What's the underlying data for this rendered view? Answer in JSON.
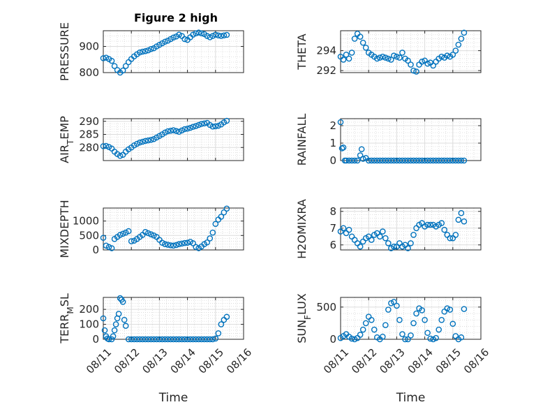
{
  "figure": {
    "title": "Figure 2 high"
  },
  "colors": {
    "series": "#0072bd",
    "axes": "#262626",
    "grid": "#dcdcdc"
  },
  "chart_data": [
    {
      "id": "pressure",
      "type": "scatter",
      "title": "Figure 2 high",
      "ylabel": "PRESSURE",
      "xlabel": "",
      "xlim": [
        0,
        5
      ],
      "ylim": [
        800,
        960
      ],
      "yticks": [
        800,
        900
      ],
      "grid": true,
      "x_ticks_shown": false,
      "x": [
        0.0,
        0.1,
        0.2,
        0.3,
        0.4,
        0.5,
        0.6,
        0.7,
        0.8,
        0.9,
        1.0,
        1.1,
        1.2,
        1.3,
        1.4,
        1.5,
        1.6,
        1.7,
        1.8,
        1.9,
        2.0,
        2.1,
        2.2,
        2.3,
        2.4,
        2.5,
        2.6,
        2.7,
        2.8,
        2.9,
        3.0,
        3.1,
        3.2,
        3.3,
        3.4,
        3.5,
        3.6,
        3.7,
        3.8,
        3.9,
        4.0,
        4.1,
        4.2,
        4.3,
        4.4
      ],
      "y": [
        855,
        857,
        852,
        845,
        825,
        810,
        800,
        808,
        825,
        840,
        852,
        862,
        870,
        877,
        880,
        882,
        885,
        890,
        893,
        900,
        906,
        912,
        918,
        922,
        928,
        934,
        938,
        945,
        940,
        928,
        925,
        935,
        945,
        950,
        953,
        950,
        947,
        940,
        935,
        940,
        945,
        942,
        940,
        942,
        944
      ]
    },
    {
      "id": "theta",
      "type": "scatter",
      "ylabel": "THETA",
      "xlabel": "",
      "xlim": [
        0,
        5
      ],
      "ylim": [
        291.8,
        296
      ],
      "yticks": [
        292,
        294
      ],
      "grid": true,
      "x_ticks_shown": false,
      "x": [
        0.0,
        0.1,
        0.2,
        0.3,
        0.4,
        0.5,
        0.6,
        0.7,
        0.8,
        0.9,
        1.0,
        1.1,
        1.2,
        1.3,
        1.4,
        1.5,
        1.6,
        1.7,
        1.8,
        1.9,
        2.0,
        2.1,
        2.2,
        2.3,
        2.4,
        2.5,
        2.6,
        2.7,
        2.8,
        2.9,
        3.0,
        3.1,
        3.2,
        3.3,
        3.4,
        3.5,
        3.6,
        3.7,
        3.8,
        3.9,
        4.0,
        4.1,
        4.2,
        4.3,
        4.4
      ],
      "y": [
        293.4,
        293.1,
        293.6,
        293.2,
        293.8,
        295.2,
        295.7,
        295.4,
        294.8,
        294.3,
        293.8,
        293.6,
        293.4,
        293.2,
        293.3,
        293.4,
        293.3,
        293.2,
        293.1,
        293.5,
        293.4,
        293.3,
        293.8,
        293.2,
        293.0,
        292.6,
        292.0,
        291.9,
        292.6,
        292.9,
        293.0,
        292.7,
        292.8,
        292.5,
        292.9,
        293.2,
        293.4,
        293.3,
        293.5,
        293.4,
        293.6,
        294.0,
        294.6,
        295.2,
        295.8
      ]
    },
    {
      "id": "air_temp",
      "type": "scatter",
      "ylabel": "AIR",
      "ylabel_sub": "T",
      "ylabel_suffix": "EMP",
      "xlabel": "",
      "xlim": [
        0,
        5
      ],
      "ylim": [
        275,
        291
      ],
      "yticks": [
        280,
        285,
        290
      ],
      "grid": true,
      "x_ticks_shown": false,
      "x": [
        0.0,
        0.1,
        0.2,
        0.3,
        0.4,
        0.5,
        0.6,
        0.7,
        0.8,
        0.9,
        1.0,
        1.1,
        1.2,
        1.3,
        1.4,
        1.5,
        1.6,
        1.7,
        1.8,
        1.9,
        2.0,
        2.1,
        2.2,
        2.3,
        2.4,
        2.5,
        2.6,
        2.7,
        2.8,
        2.9,
        3.0,
        3.1,
        3.2,
        3.3,
        3.4,
        3.5,
        3.6,
        3.7,
        3.8,
        3.9,
        4.0,
        4.1,
        4.2,
        4.3,
        4.4
      ],
      "y": [
        280.5,
        280.6,
        280.2,
        279.6,
        278.4,
        277.5,
        276.8,
        277.2,
        278.4,
        279.3,
        280.0,
        280.8,
        281.4,
        281.9,
        282.2,
        282.5,
        282.7,
        282.9,
        283.2,
        283.8,
        284.4,
        285.0,
        285.7,
        286.2,
        286.4,
        286.6,
        286.3,
        286.0,
        286.5,
        287.0,
        287.2,
        287.5,
        287.9,
        288.2,
        288.6,
        289.0,
        289.2,
        289.4,
        288.6,
        288.0,
        288.1,
        288.3,
        288.8,
        289.6,
        290.2
      ]
    },
    {
      "id": "rainfall",
      "type": "scatter",
      "ylabel": "RAINFALL",
      "xlabel": "",
      "xlim": [
        0,
        5
      ],
      "ylim": [
        0,
        2.4
      ],
      "yticks": [
        0,
        1,
        2
      ],
      "grid": true,
      "x_ticks_shown": false,
      "x": [
        0.0,
        0.05,
        0.1,
        0.15,
        0.2,
        0.3,
        0.4,
        0.5,
        0.6,
        0.7,
        0.75,
        0.8,
        0.9,
        1.0,
        1.1,
        1.2,
        1.3,
        1.4,
        1.5,
        1.6,
        1.7,
        1.8,
        1.9,
        2.0,
        2.1,
        2.2,
        2.3,
        2.4,
        2.5,
        2.6,
        2.7,
        2.8,
        2.9,
        3.0,
        3.1,
        3.2,
        3.3,
        3.4,
        3.5,
        3.6,
        3.7,
        3.8,
        3.9,
        4.0,
        4.1,
        4.2,
        4.3,
        4.4
      ],
      "y": [
        2.2,
        0.7,
        0.75,
        0,
        0,
        0,
        0,
        0,
        0,
        0.3,
        0.65,
        0.1,
        0.15,
        0,
        0,
        0,
        0,
        0,
        0,
        0,
        0,
        0,
        0,
        0,
        0,
        0,
        0,
        0,
        0,
        0,
        0,
        0,
        0,
        0,
        0,
        0,
        0,
        0,
        0,
        0,
        0,
        0,
        0,
        0,
        0,
        0,
        0,
        0
      ]
    },
    {
      "id": "mixdepth",
      "type": "scatter",
      "ylabel": "MIXDEPTH",
      "xlabel": "",
      "xlim": [
        0,
        5
      ],
      "ylim": [
        0,
        1450
      ],
      "yticks": [
        0,
        500,
        1000
      ],
      "grid": true,
      "x_ticks_shown": false,
      "x": [
        0.0,
        0.1,
        0.2,
        0.3,
        0.4,
        0.5,
        0.6,
        0.7,
        0.8,
        0.9,
        1.0,
        1.1,
        1.2,
        1.3,
        1.4,
        1.5,
        1.6,
        1.7,
        1.8,
        1.9,
        2.0,
        2.1,
        2.2,
        2.3,
        2.4,
        2.5,
        2.6,
        2.7,
        2.8,
        2.9,
        3.0,
        3.1,
        3.2,
        3.3,
        3.4,
        3.5,
        3.6,
        3.7,
        3.8,
        3.9,
        4.0,
        4.1,
        4.2,
        4.3,
        4.4
      ],
      "y": [
        420,
        150,
        100,
        60,
        380,
        450,
        520,
        560,
        600,
        650,
        300,
        320,
        380,
        450,
        520,
        620,
        580,
        540,
        500,
        450,
        350,
        250,
        200,
        180,
        160,
        150,
        170,
        200,
        220,
        240,
        250,
        280,
        230,
        100,
        60,
        120,
        200,
        260,
        400,
        600,
        900,
        1050,
        1150,
        1300,
        1430
      ]
    },
    {
      "id": "h2omixra",
      "type": "scatter",
      "ylabel": "H2OMIXRA",
      "xlabel": "",
      "xlim": [
        0,
        5
      ],
      "ylim": [
        5.7,
        8.2
      ],
      "yticks": [
        6,
        7,
        8
      ],
      "grid": true,
      "x_ticks_shown": false,
      "x": [
        0.0,
        0.1,
        0.2,
        0.3,
        0.4,
        0.5,
        0.6,
        0.7,
        0.8,
        0.9,
        1.0,
        1.1,
        1.2,
        1.3,
        1.4,
        1.5,
        1.6,
        1.7,
        1.8,
        1.9,
        2.0,
        2.1,
        2.2,
        2.3,
        2.4,
        2.5,
        2.6,
        2.7,
        2.8,
        2.9,
        3.0,
        3.1,
        3.2,
        3.3,
        3.4,
        3.5,
        3.6,
        3.7,
        3.8,
        3.9,
        4.0,
        4.1,
        4.2,
        4.3,
        4.4
      ],
      "y": [
        6.8,
        7.0,
        6.7,
        6.9,
        6.5,
        6.3,
        6.1,
        5.9,
        6.2,
        6.4,
        6.5,
        6.3,
        6.6,
        6.7,
        6.5,
        6.8,
        6.4,
        6.1,
        5.8,
        5.9,
        5.9,
        6.1,
        5.9,
        6.0,
        5.8,
        6.1,
        6.6,
        7.0,
        7.2,
        7.3,
        7.1,
        7.2,
        7.2,
        7.2,
        7.1,
        7.2,
        7.3,
        6.9,
        6.6,
        6.4,
        6.4,
        6.6,
        7.5,
        7.9,
        7.4
      ]
    },
    {
      "id": "terr_msl",
      "type": "scatter",
      "ylabel": "TERR",
      "ylabel_sub": "M",
      "ylabel_suffix": "SL",
      "xlabel": "Time",
      "xlim": [
        0,
        5
      ],
      "ylim": [
        0,
        280
      ],
      "yticks": [
        0,
        100,
        200
      ],
      "grid": true,
      "x_ticks_shown": true,
      "xticks": [
        0,
        1,
        2,
        3,
        4,
        5
      ],
      "xticklabels": [
        "08/11",
        "08/12",
        "08/13",
        "08/14",
        "08/15",
        "08/16"
      ],
      "x": [
        0.0,
        0.05,
        0.1,
        0.15,
        0.2,
        0.3,
        0.35,
        0.4,
        0.45,
        0.5,
        0.55,
        0.6,
        0.65,
        0.7,
        0.75,
        0.8,
        0.9,
        1.0,
        1.1,
        1.2,
        1.3,
        1.4,
        1.5,
        1.6,
        1.7,
        1.8,
        1.9,
        2.0,
        2.1,
        2.2,
        2.3,
        2.4,
        2.5,
        2.6,
        2.7,
        2.8,
        2.9,
        3.0,
        3.1,
        3.2,
        3.3,
        3.4,
        3.5,
        3.6,
        3.7,
        3.8,
        3.9,
        4.0,
        4.1,
        4.2,
        4.3,
        4.4
      ],
      "y": [
        140,
        60,
        20,
        5,
        0,
        0,
        20,
        60,
        100,
        140,
        170,
        275,
        265,
        250,
        130,
        90,
        0,
        0,
        0,
        0,
        0,
        0,
        0,
        0,
        0,
        0,
        0,
        0,
        0,
        0,
        0,
        0,
        0,
        0,
        0,
        0,
        0,
        0,
        0,
        0,
        0,
        0,
        0,
        0,
        0,
        0,
        0,
        5,
        40,
        100,
        130,
        150
      ]
    },
    {
      "id": "sun_flux",
      "type": "scatter",
      "ylabel": "SUN",
      "ylabel_sub": "F",
      "ylabel_suffix": "LUX",
      "xlabel": "Time",
      "xlim": [
        0,
        5
      ],
      "ylim": [
        0,
        650
      ],
      "yticks": [
        0,
        500
      ],
      "grid": true,
      "x_ticks_shown": true,
      "xticks": [
        0,
        1,
        2,
        3,
        4,
        5
      ],
      "xticklabels": [
        "08/11",
        "08/12",
        "08/13",
        "08/14",
        "08/15",
        "08/16"
      ],
      "x": [
        0.0,
        0.1,
        0.2,
        0.3,
        0.4,
        0.5,
        0.6,
        0.7,
        0.8,
        0.9,
        1.0,
        1.1,
        1.2,
        1.3,
        1.4,
        1.5,
        1.6,
        1.7,
        1.8,
        1.9,
        2.0,
        2.1,
        2.2,
        2.3,
        2.4,
        2.5,
        2.6,
        2.7,
        2.8,
        2.9,
        3.0,
        3.1,
        3.2,
        3.3,
        3.4,
        3.5,
        3.6,
        3.7,
        3.8,
        3.9,
        4.0,
        4.1,
        4.2,
        4.3,
        4.4
      ],
      "y": [
        20,
        50,
        80,
        40,
        10,
        0,
        20,
        70,
        150,
        250,
        350,
        300,
        150,
        30,
        0,
        40,
        220,
        460,
        560,
        580,
        520,
        300,
        80,
        0,
        0,
        60,
        250,
        400,
        480,
        450,
        300,
        100,
        10,
        0,
        20,
        150,
        300,
        430,
        480,
        460,
        240,
        50,
        0,
        30,
        470
      ]
    }
  ]
}
